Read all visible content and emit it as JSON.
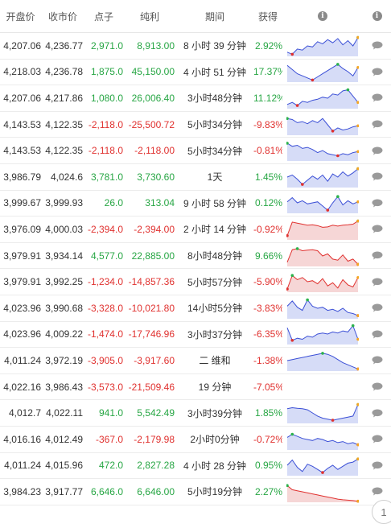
{
  "headers": {
    "open": "开盘价",
    "close": "收市价",
    "points": "点子",
    "profit": "纯利",
    "period": "期间",
    "gain": "获得",
    "chart_info": "i",
    "comment_info": "i"
  },
  "colors": {
    "positive": "#27a644",
    "negative": "#e0312f",
    "blue_line": "#3b4fd6",
    "blue_fill": "#d6dcf7",
    "red_line": "#e0312f",
    "red_fill": "#f6d6d6"
  },
  "trades": [
    {
      "open": "4,207.06",
      "close": "4,236.77",
      "points": "2,971.0",
      "profit": "8,913.00",
      "period": "8 小时 39 分钟",
      "gain": "2.92%",
      "sign": "pos",
      "trend": "blue",
      "spark": [
        0.2,
        0.1,
        0.35,
        0.3,
        0.5,
        0.45,
        0.7,
        0.6,
        0.8,
        0.65,
        0.85,
        0.55,
        0.75,
        0.5,
        0.9
      ]
    },
    {
      "open": "4,218.03",
      "close": "4,236.78",
      "points": "1,875.0",
      "profit": "45,150.00",
      "period": "4 小时 51 分钟",
      "gain": "17.37%",
      "sign": "pos",
      "trend": "blue",
      "spark": [
        0.8,
        0.6,
        0.4,
        0.3,
        0.2,
        0.1,
        0.25,
        0.4,
        0.55,
        0.7,
        0.85,
        0.65,
        0.5,
        0.3,
        0.7
      ]
    },
    {
      "open": "4,207.06",
      "close": "4,217.86",
      "points": "1,080.0",
      "profit": "26,006.40",
      "period": "3小时48分钟",
      "gain": "11.12%",
      "sign": "pos",
      "trend": "blue",
      "spark": [
        0.2,
        0.3,
        0.15,
        0.35,
        0.3,
        0.4,
        0.45,
        0.55,
        0.5,
        0.7,
        0.65,
        0.85,
        0.9,
        0.6,
        0.3
      ]
    },
    {
      "open": "4,143.53",
      "close": "4,122.35",
      "points": "-2,118.0",
      "profit": "-25,500.72",
      "period": "5小时34分钟",
      "gain": "-9.83%",
      "sign": "neg",
      "trend": "blue",
      "spark": [
        0.8,
        0.75,
        0.6,
        0.65,
        0.55,
        0.7,
        0.6,
        0.8,
        0.5,
        0.2,
        0.35,
        0.25,
        0.3,
        0.4,
        0.45
      ]
    },
    {
      "open": "4,143.53",
      "close": "4,122.35",
      "points": "-2,118.0",
      "profit": "-2,118.00",
      "period": "5小时34分钟",
      "gain": "-0.81%",
      "sign": "neg",
      "trend": "blue",
      "spark": [
        0.85,
        0.7,
        0.75,
        0.6,
        0.65,
        0.55,
        0.4,
        0.5,
        0.35,
        0.3,
        0.25,
        0.35,
        0.3,
        0.4,
        0.45
      ]
    },
    {
      "open": "3,986.79",
      "close": "4,024.6",
      "points": "3,781.0",
      "profit": "3,730.60",
      "period": "1天",
      "gain": "1.45%",
      "sign": "pos",
      "trend": "blue",
      "spark": [
        0.5,
        0.6,
        0.4,
        0.15,
        0.35,
        0.55,
        0.4,
        0.6,
        0.3,
        0.65,
        0.5,
        0.75,
        0.55,
        0.7,
        0.9
      ]
    },
    {
      "open": "3,999.67",
      "close": "3,999.93",
      "points": "26.0",
      "profit": "313.04",
      "period": "9 小时 58 分钟",
      "gain": "0.12%",
      "sign": "pos",
      "trend": "blue",
      "spark": [
        0.55,
        0.75,
        0.5,
        0.6,
        0.45,
        0.5,
        0.55,
        0.35,
        0.15,
        0.5,
        0.8,
        0.4,
        0.6,
        0.45,
        0.55
      ]
    },
    {
      "open": "3,976.09",
      "close": "4,000.03",
      "points": "-2,394.0",
      "profit": "-2,394.00",
      "period": "2 小时 14 分钟",
      "gain": "-0.92%",
      "sign": "neg",
      "trend": "red",
      "spark": [
        0.2,
        0.85,
        0.8,
        0.75,
        0.7,
        0.72,
        0.68,
        0.6,
        0.62,
        0.7,
        0.66,
        0.7,
        0.72,
        0.75,
        0.9
      ]
    },
    {
      "open": "3,979.91",
      "close": "3,934.14",
      "points": "4,577.0",
      "profit": "22,885.00",
      "period": "8小时48分钟",
      "gain": "9.66%",
      "sign": "pos",
      "trend": "red",
      "spark": [
        0.2,
        0.8,
        0.85,
        0.75,
        0.78,
        0.8,
        0.75,
        0.5,
        0.6,
        0.35,
        0.3,
        0.55,
        0.25,
        0.35,
        0.1
      ]
    },
    {
      "open": "3,979.91",
      "close": "3,992.25",
      "points": "-1,234.0",
      "profit": "-14,857.36",
      "period": "5小时57分钟",
      "gain": "-5.90%",
      "sign": "neg",
      "trend": "red",
      "spark": [
        0.15,
        0.8,
        0.6,
        0.7,
        0.5,
        0.55,
        0.4,
        0.65,
        0.3,
        0.45,
        0.2,
        0.6,
        0.35,
        0.25,
        0.7
      ]
    },
    {
      "open": "4,023.96",
      "close": "3,990.68",
      "points": "-3,328.0",
      "profit": "-10,021.80",
      "period": "14小时5分钟",
      "gain": "-3.83%",
      "sign": "neg",
      "trend": "blue",
      "spark": [
        0.6,
        0.85,
        0.55,
        0.4,
        0.9,
        0.6,
        0.5,
        0.55,
        0.4,
        0.45,
        0.35,
        0.5,
        0.3,
        0.25,
        0.15
      ]
    },
    {
      "open": "4,023.96",
      "close": "4,009.22",
      "points": "-1,474.0",
      "profit": "-17,746.96",
      "period": "3小时37分钟",
      "gain": "-6.35%",
      "sign": "neg",
      "trend": "blue",
      "spark": [
        0.8,
        0.2,
        0.3,
        0.25,
        0.4,
        0.35,
        0.5,
        0.55,
        0.5,
        0.6,
        0.55,
        0.65,
        0.6,
        0.9,
        0.25
      ]
    },
    {
      "open": "4,011.24",
      "close": "3,972.19",
      "points": "-3,905.0",
      "profit": "-3,917.60",
      "period": "二 维和",
      "gain": "-1.38%",
      "sign": "neg",
      "trend": "blue",
      "spark": [
        0.5,
        0.55,
        0.6,
        0.65,
        0.7,
        0.75,
        0.8,
        0.85,
        0.8,
        0.7,
        0.55,
        0.4,
        0.3,
        0.2,
        0.1
      ]
    },
    {
      "open": "4,022.16",
      "close": "3,986.43",
      "points": "-3,573.0",
      "profit": "-21,509.46",
      "period": "19 分钟",
      "gain": "-7.05%",
      "sign": "neg",
      "trend": "none",
      "spark": []
    },
    {
      "open": "4,012.7",
      "close": "4,022.11",
      "points": "941.0",
      "profit": "5,542.49",
      "period": "3小时39分钟",
      "gain": "1.85%",
      "sign": "pos",
      "trend": "blue",
      "spark": [
        0.7,
        0.75,
        0.72,
        0.7,
        0.65,
        0.5,
        0.35,
        0.25,
        0.2,
        0.15,
        0.2,
        0.25,
        0.3,
        0.35,
        0.9
      ]
    },
    {
      "open": "4,016.16",
      "close": "4,012.49",
      "points": "-367.0",
      "profit": "-2,179.98",
      "period": "2小时0分钟",
      "gain": "-0.72%",
      "sign": "neg",
      "trend": "blue",
      "spark": [
        0.6,
        0.75,
        0.65,
        0.55,
        0.5,
        0.45,
        0.55,
        0.5,
        0.4,
        0.45,
        0.35,
        0.4,
        0.3,
        0.35,
        0.25
      ]
    },
    {
      "open": "4,011.24",
      "close": "4,015.96",
      "points": "472.0",
      "profit": "2,827.28",
      "period": "4 小时 28 分钟",
      "gain": "0.95%",
      "sign": "pos",
      "trend": "blue",
      "spark": [
        0.5,
        0.75,
        0.4,
        0.2,
        0.55,
        0.45,
        0.3,
        0.15,
        0.35,
        0.5,
        0.3,
        0.45,
        0.6,
        0.65,
        0.8
      ]
    },
    {
      "open": "3,984.23",
      "close": "3,917.77",
      "points": "6,646.0",
      "profit": "6,646.00",
      "period": "5小时19分钟",
      "gain": "2.27%",
      "sign": "pos",
      "trend": "red",
      "spark": [
        0.8,
        0.6,
        0.55,
        0.5,
        0.45,
        0.4,
        0.35,
        0.3,
        0.25,
        0.2,
        0.15,
        0.12,
        0.1,
        0.08,
        0.05
      ]
    }
  ],
  "pagination": {
    "current_label": "1"
  }
}
